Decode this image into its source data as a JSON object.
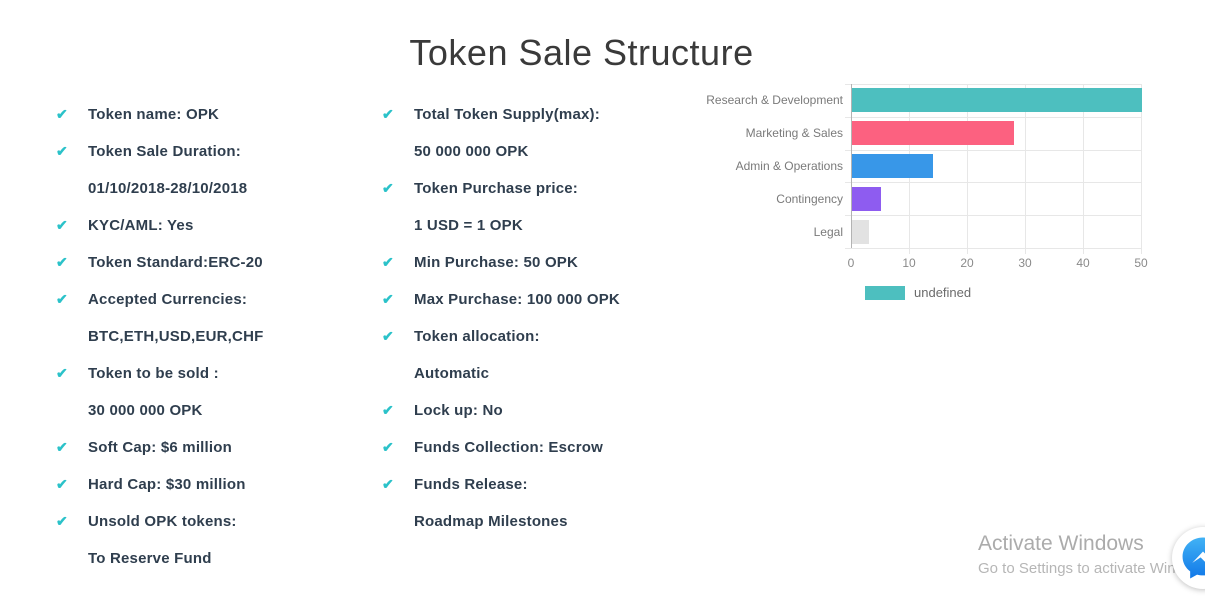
{
  "page": {
    "title": "Token Sale Structure"
  },
  "icons": {
    "check": "✔",
    "messenger": "messenger-lightning-bolt"
  },
  "checklist": {
    "check_color": "#2bc2c9",
    "text_color": "#2f3e4e",
    "left": [
      {
        "check": true,
        "text": "Token name: OPK"
      },
      {
        "check": true,
        "text": "Token Sale Duration:"
      },
      {
        "check": false,
        "text": "01/10/2018-28/10/2018"
      },
      {
        "check": true,
        "text": "KYC/AML: Yes"
      },
      {
        "check": true,
        "text": "Token Standard:ERC-20"
      },
      {
        "check": true,
        "text": "Accepted Currencies:"
      },
      {
        "check": false,
        "text": "BTC,ETH,USD,EUR,CHF"
      },
      {
        "check": true,
        "text": "Token to be sold :"
      },
      {
        "check": false,
        "text": "30 000 000 OPK"
      },
      {
        "check": true,
        "text": "Soft Cap: $6 million"
      },
      {
        "check": true,
        "text": "Hard Cap: $30 million"
      },
      {
        "check": true,
        "text": "Unsold OPK tokens:"
      },
      {
        "check": false,
        "text": "To Reserve Fund"
      }
    ],
    "middle": [
      {
        "check": true,
        "text": "Total Token Supply(max):"
      },
      {
        "check": false,
        "text": "50 000 000 OPK"
      },
      {
        "check": true,
        "text": "Token Purchase price:"
      },
      {
        "check": false,
        "text": "1 USD = 1 OPK"
      },
      {
        "check": true,
        "text": "Min Purchase: 50 OPK"
      },
      {
        "check": true,
        "text": "Max Purchase: 100 000 OPK"
      },
      {
        "check": true,
        "text": "Token allocation:"
      },
      {
        "check": false,
        "text": "Automatic"
      },
      {
        "check": true,
        "text": "Lock up: No"
      },
      {
        "check": true,
        "text": "Funds Collection: Escrow"
      },
      {
        "check": true,
        "text": "Funds Release:"
      },
      {
        "check": false,
        "text": "Roadmap Milestones"
      }
    ]
  },
  "chart_data": {
    "type": "bar",
    "orientation": "horizontal",
    "title": "",
    "xlabel": "",
    "ylabel": "",
    "categories": [
      "Research & Development",
      "Marketing & Sales",
      "Admin & Operations",
      "Contingency",
      "Legal"
    ],
    "values": [
      50,
      28,
      14,
      5,
      3
    ],
    "colors": [
      "#4dbfbf",
      "#fc6180",
      "#3897e8",
      "#8e5cf0",
      "#e2e2e2"
    ],
    "xlim": [
      0,
      50
    ],
    "xticks": [
      0,
      10,
      20,
      30,
      40,
      50
    ],
    "grid": true,
    "legend": {
      "label": "undefined",
      "swatch_color": "#4dbfbf",
      "position": "bottom"
    }
  },
  "watermark": {
    "line1": "Activate Windows",
    "line2": "Go to Settings to activate Windows"
  }
}
